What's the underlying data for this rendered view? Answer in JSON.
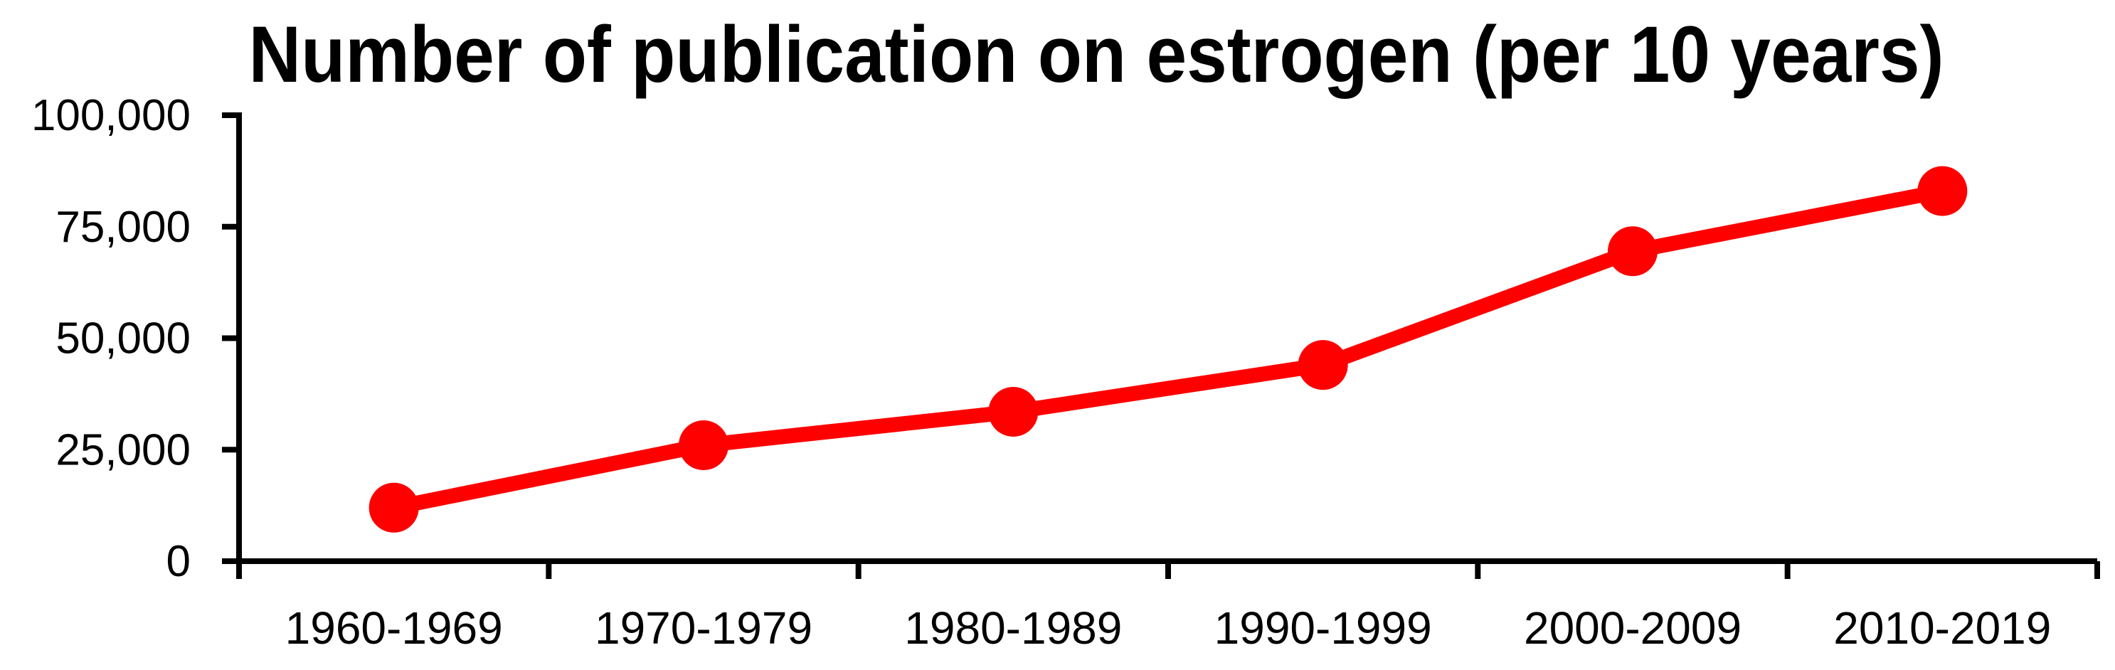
{
  "chart_data": {
    "type": "line",
    "title": "Number of publication on estrogen (per 10 years)",
    "categories": [
      "1960-1969",
      "1970-1979",
      "1980-1989",
      "1990-1999",
      "2000-2009",
      "2010-2019"
    ],
    "values": [
      12000,
      26000,
      33500,
      44000,
      69500,
      83000
    ],
    "xlabel": "",
    "ylabel": "",
    "ylim": [
      0,
      100000
    ],
    "yticks": [
      0,
      25000,
      50000,
      75000,
      100000
    ],
    "ytick_labels": [
      "0",
      "25,000",
      "50,000",
      "75,000",
      "100,000"
    ],
    "grid": false,
    "legend": false,
    "line_color": "#ff0000",
    "marker_color": "#ff0000",
    "marker_shape": "circle",
    "axis_color": "#000000",
    "title_color": "#000000",
    "background_color": "#ffffff"
  }
}
